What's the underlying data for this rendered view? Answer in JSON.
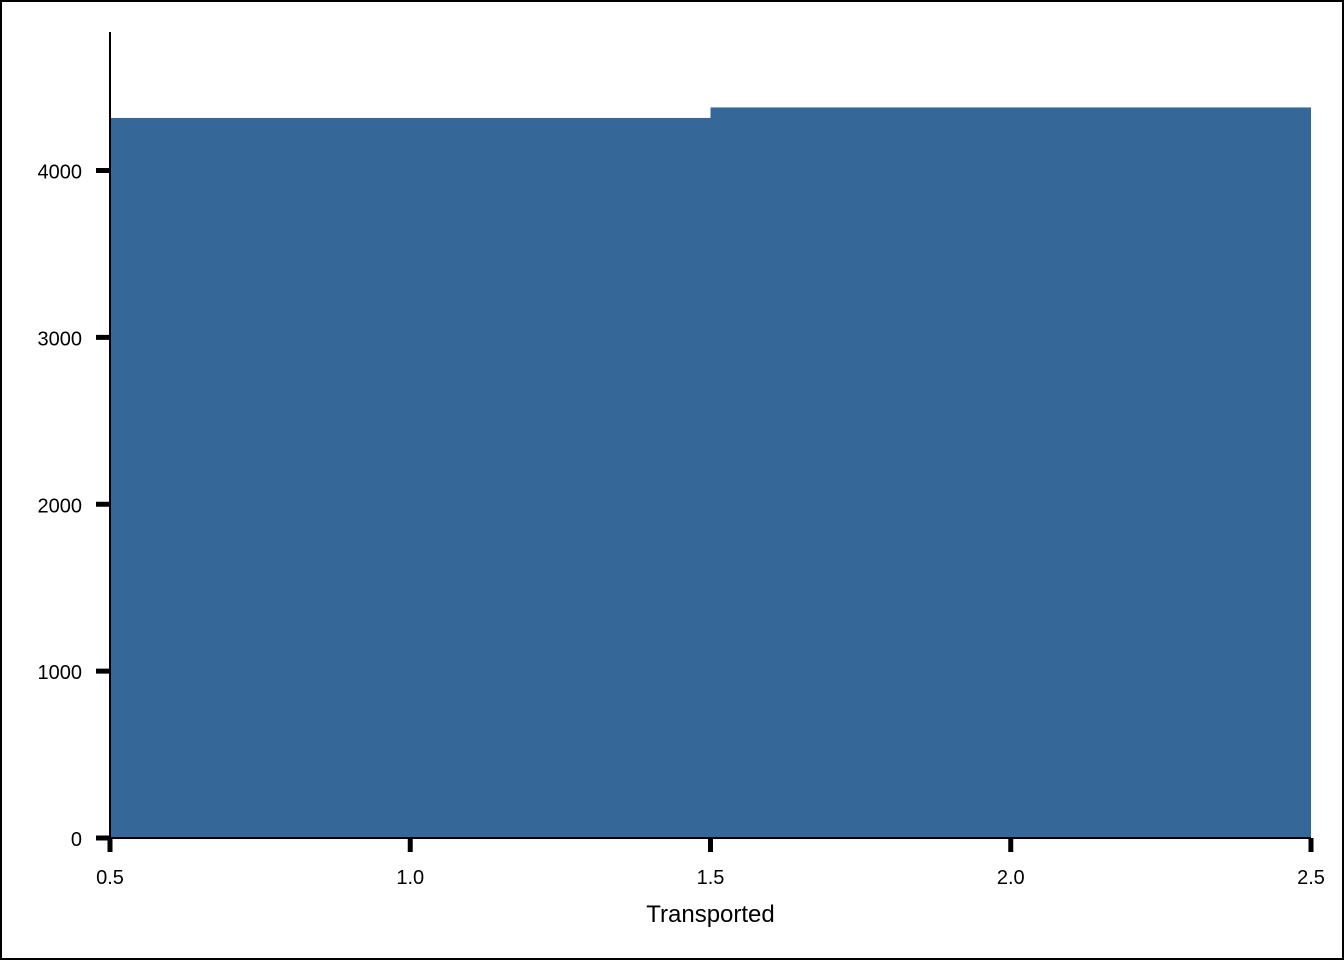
{
  "chart_data": {
    "type": "bar",
    "bins": [
      {
        "start": 0.5,
        "end": 1.5,
        "value": 4315
      },
      {
        "start": 1.5,
        "end": 2.5,
        "value": 4378
      }
    ],
    "xlabel": "Transported",
    "ylabel": "",
    "title": "",
    "xlim": [
      0.5,
      2.5
    ],
    "ylim": [
      0,
      4830
    ],
    "x_ticks": [
      {
        "value": 0.5,
        "label": "0.5"
      },
      {
        "value": 1.0,
        "label": "1.0"
      },
      {
        "value": 1.5,
        "label": "1.5"
      },
      {
        "value": 2.0,
        "label": "2.0"
      },
      {
        "value": 2.5,
        "label": "2.5"
      }
    ],
    "y_ticks": [
      {
        "value": 0,
        "label": "0"
      },
      {
        "value": 1000,
        "label": "1000"
      },
      {
        "value": 2000,
        "label": "2000"
      },
      {
        "value": 3000,
        "label": "3000"
      },
      {
        "value": 4000,
        "label": "4000"
      }
    ],
    "bar_color": "#356899",
    "grid": false,
    "legend": "none"
  }
}
